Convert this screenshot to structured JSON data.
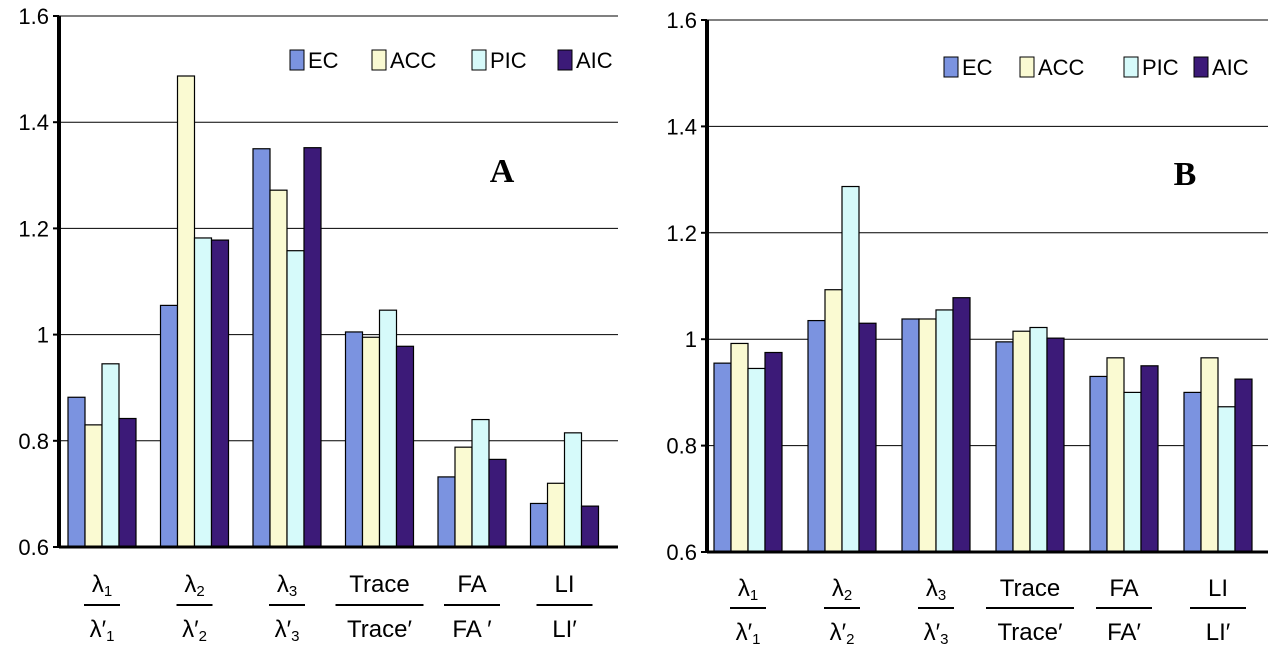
{
  "chart_data": [
    {
      "type": "bar",
      "panel_label": "A",
      "ylim": [
        0.6,
        1.6
      ],
      "yticks": [
        "0.6",
        "0.8",
        "1",
        "1.2",
        "1.4",
        "1.6"
      ],
      "grid": true,
      "legend_position": "top-right",
      "categories": [
        {
          "num": "λ",
          "num_sub": "1",
          "den": "λ′",
          "den_sub": "1"
        },
        {
          "num": "λ",
          "num_sub": "2",
          "den": "λ′",
          "den_sub": "2"
        },
        {
          "num": "λ",
          "num_sub": "3",
          "den": "λ′",
          "den_sub": "3"
        },
        {
          "num": "Trace",
          "num_sub": "",
          "den": "Trace′",
          "den_sub": ""
        },
        {
          "num": "FA",
          "num_sub": "",
          "den": "FA ′",
          "den_sub": ""
        },
        {
          "num": "LI",
          "num_sub": "",
          "den": "LI′",
          "den_sub": ""
        }
      ],
      "series": [
        {
          "name": "EC",
          "color": "#7b93e0",
          "values": [
            0.882,
            1.055,
            1.35,
            1.005,
            0.732,
            0.682
          ]
        },
        {
          "name": "ACC",
          "color": "#fafad2",
          "values": [
            0.83,
            1.487,
            1.272,
            0.995,
            0.788,
            0.72
          ]
        },
        {
          "name": "PIC",
          "color": "#d6fafa",
          "values": [
            0.945,
            1.182,
            1.158,
            1.046,
            0.84,
            0.815
          ]
        },
        {
          "name": "AIC",
          "color": "#3c1a78",
          "values": [
            0.842,
            1.178,
            1.352,
            0.978,
            0.765,
            0.677
          ]
        }
      ]
    },
    {
      "type": "bar",
      "panel_label": "B",
      "ylim": [
        0.6,
        1.6
      ],
      "yticks": [
        "0.6",
        "0.8",
        "1",
        "1.2",
        "1.4",
        "1.6"
      ],
      "grid": true,
      "legend_position": "top-right",
      "categories": [
        {
          "num": "λ",
          "num_sub": "1",
          "den": "λ′",
          "den_sub": "1"
        },
        {
          "num": "λ",
          "num_sub": "2",
          "den": "λ′",
          "den_sub": "2"
        },
        {
          "num": "λ",
          "num_sub": "3",
          "den": "λ′",
          "den_sub": "3"
        },
        {
          "num": "Trace",
          "num_sub": "",
          "den": "Trace′",
          "den_sub": ""
        },
        {
          "num": "FA",
          "num_sub": "",
          "den": "FA′",
          "den_sub": ""
        },
        {
          "num": "LI",
          "num_sub": "",
          "den": "LI′",
          "den_sub": ""
        }
      ],
      "series": [
        {
          "name": "EC",
          "color": "#7b93e0",
          "values": [
            0.955,
            1.035,
            1.038,
            0.995,
            0.93,
            0.9
          ]
        },
        {
          "name": "ACC",
          "color": "#fafad2",
          "values": [
            0.992,
            1.093,
            1.038,
            1.015,
            0.965,
            0.965
          ]
        },
        {
          "name": "PIC",
          "color": "#d6fafa",
          "values": [
            0.945,
            1.287,
            1.055,
            1.022,
            0.9,
            0.873
          ]
        },
        {
          "name": "AIC",
          "color": "#3c1a78",
          "values": [
            0.975,
            1.03,
            1.078,
            1.002,
            0.95,
            0.925
          ]
        }
      ]
    }
  ]
}
